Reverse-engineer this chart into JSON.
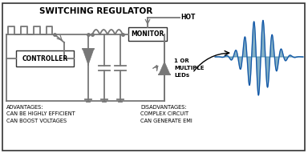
{
  "title": "SWITCHING REGULATOR",
  "bg_color": "#ffffff",
  "circuit_color": "#777777",
  "wave_color_fill": "#4488aa",
  "wave_color_line": "#1155aa",
  "advantages_text": "ADVANTAGES:\nCAN BE HIGHLY EFFICIENT\nCAN BOOST VOLTAGES",
  "disadvantages_text": "DISADVANTAGES:\nCOMPLEX CIRCUIT\nCAN GENERATE EMI",
  "led_text": "1 OR\nMULTIPLE\nLEDs",
  "hot_text": "HOT",
  "controller_text": "CONTROLLER",
  "monitor_text": "MONITOR",
  "figsize": [
    3.84,
    1.91
  ],
  "dpi": 100,
  "xlim": [
    0,
    384
  ],
  "ylim": [
    0,
    191
  ]
}
